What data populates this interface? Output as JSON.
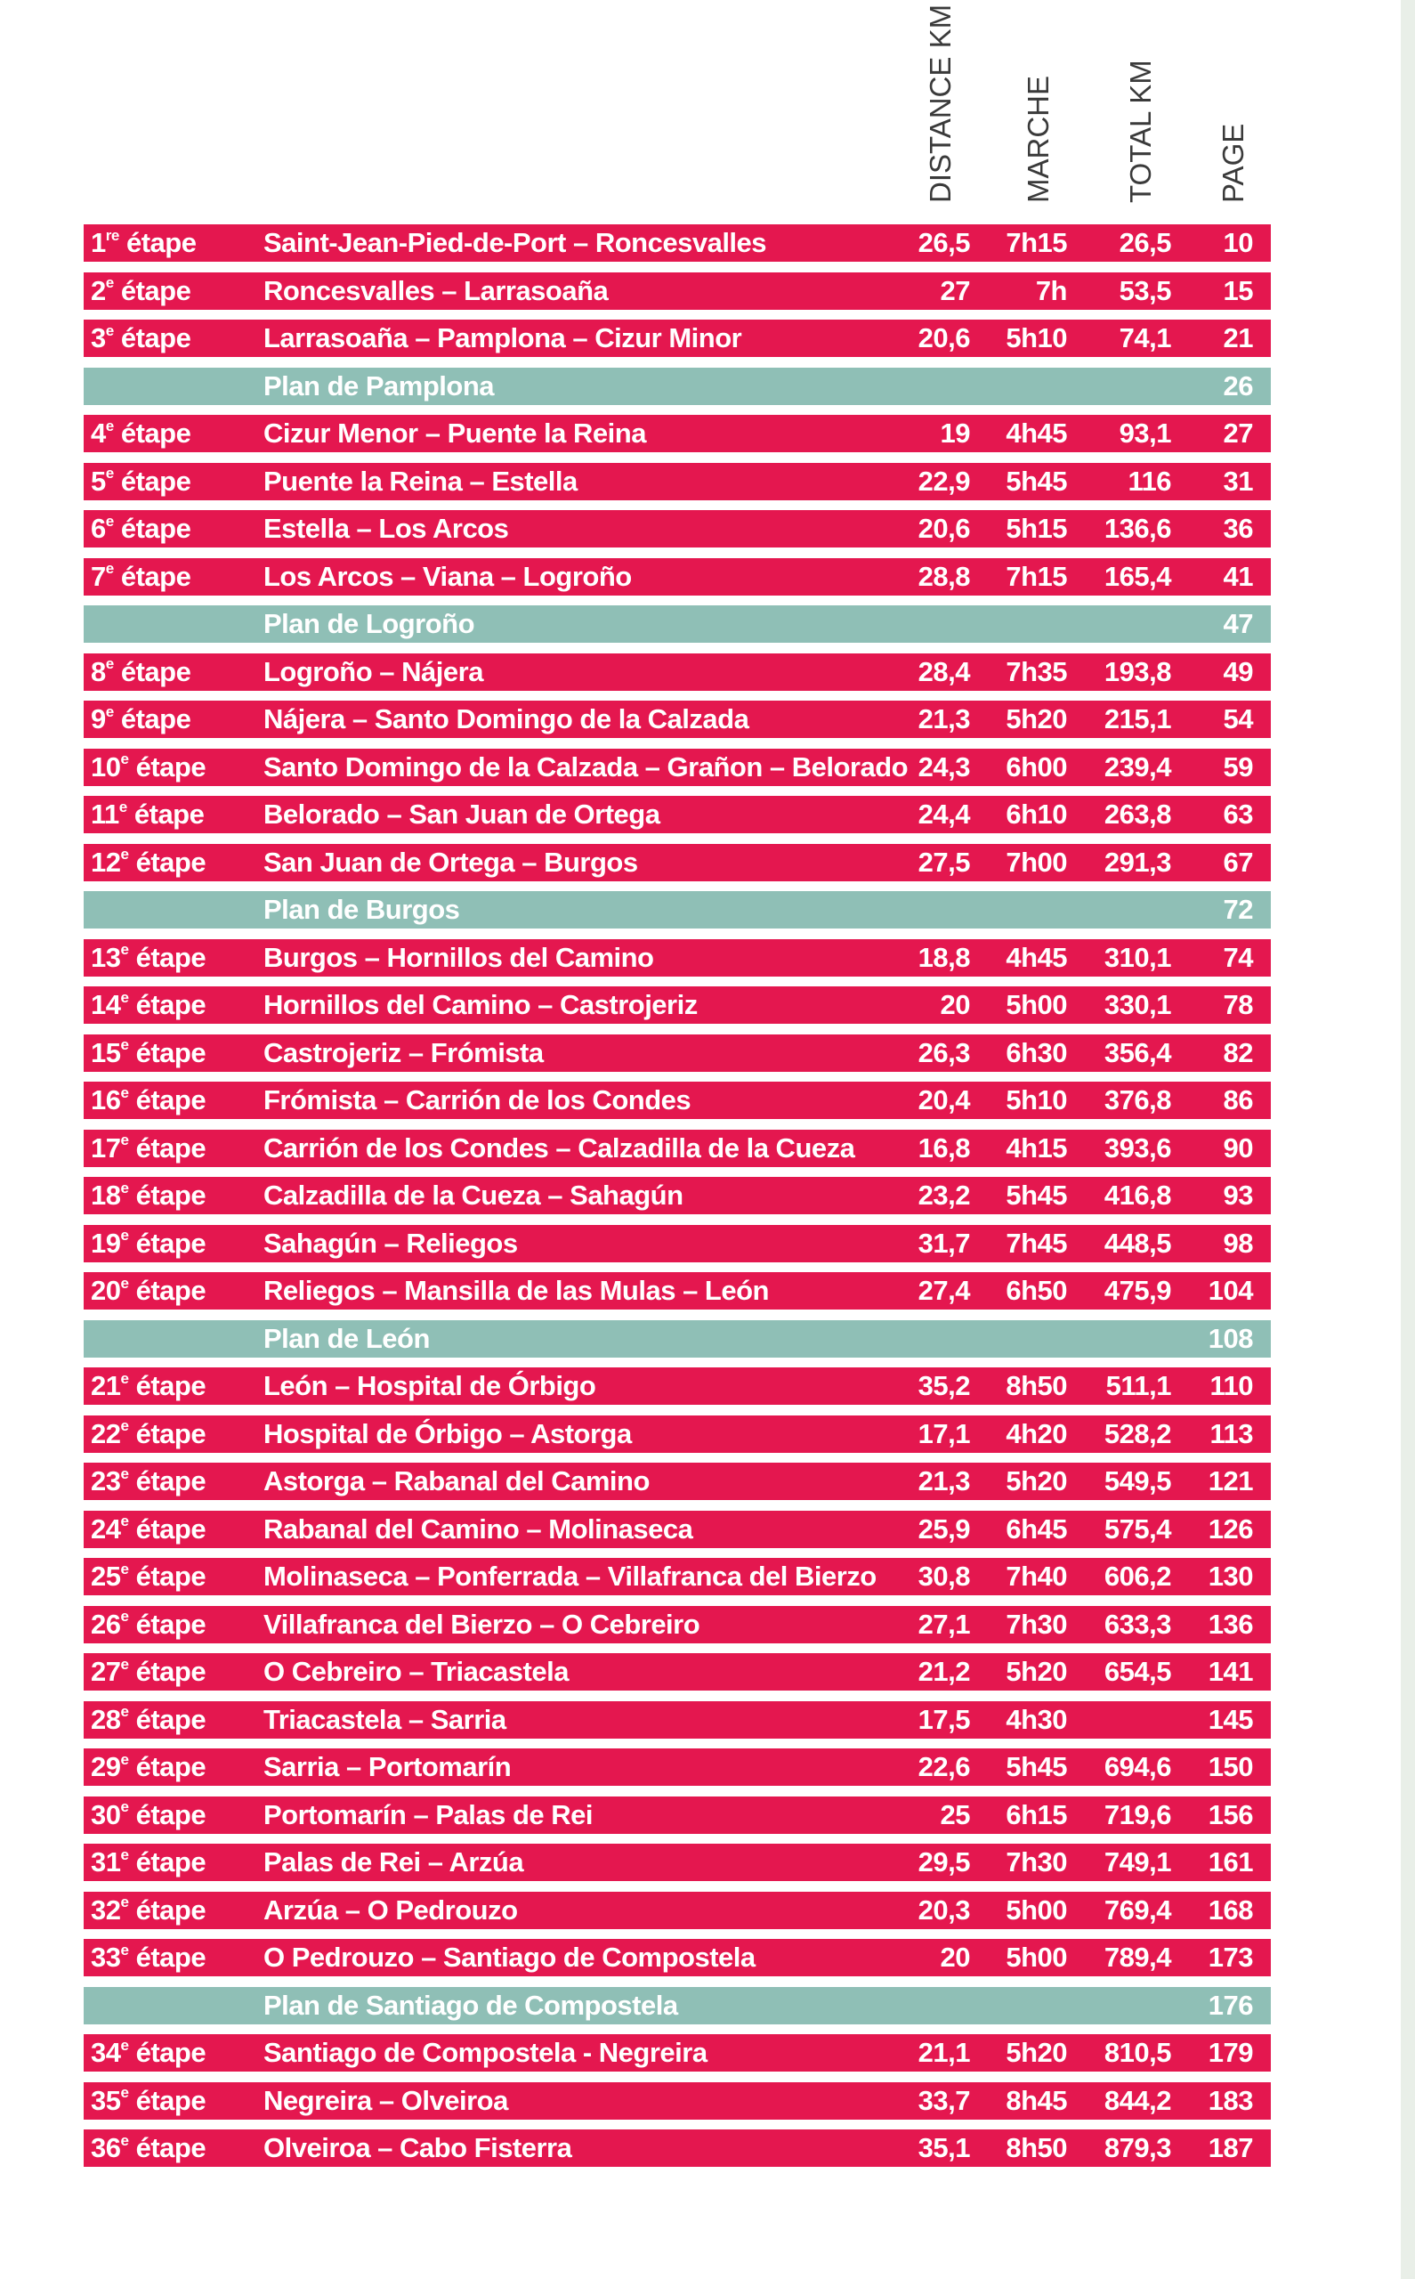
{
  "headers": {
    "distance": "DISTANCE KM",
    "marche": "MARCHE",
    "total": "TOTAL KM",
    "page": "PAGE"
  },
  "rows": [
    {
      "type": "etape",
      "n": "1",
      "sup": "re",
      "label": "étape",
      "route": "Saint-Jean-Pied-de-Port – Roncesvalles",
      "dist": "26,5",
      "time": "7h15",
      "total": "26,5",
      "page": "10"
    },
    {
      "type": "etape",
      "n": "2",
      "sup": "e",
      "label": "étape",
      "route": "Roncesvalles – Larrasoaña",
      "dist": "27",
      "time": "7h",
      "total": "53,5",
      "page": "15"
    },
    {
      "type": "etape",
      "n": "3",
      "sup": "e",
      "label": "étape",
      "route": "Larrasoaña – Pamplona – Cizur Minor",
      "dist": "20,6",
      "time": "5h10",
      "total": "74,1",
      "page": "21"
    },
    {
      "type": "plan",
      "route": "Plan de Pamplona",
      "page": "26"
    },
    {
      "type": "etape",
      "n": "4",
      "sup": "e",
      "label": "étape",
      "route": "Cizur Menor – Puente la Reina",
      "dist": "19",
      "time": "4h45",
      "total": "93,1",
      "page": "27"
    },
    {
      "type": "etape",
      "n": "5",
      "sup": "e",
      "label": "étape",
      "route": "Puente la Reina – Estella",
      "dist": "22,9",
      "time": "5h45",
      "total": "116",
      "page": "31"
    },
    {
      "type": "etape",
      "n": "6",
      "sup": "e",
      "label": "étape",
      "route": "Estella – Los Arcos",
      "dist": "20,6",
      "time": "5h15",
      "total": "136,6",
      "page": "36"
    },
    {
      "type": "etape",
      "n": "7",
      "sup": "e",
      "label": "étape",
      "route": "Los Arcos – Viana – Logroño",
      "dist": "28,8",
      "time": "7h15",
      "total": "165,4",
      "page": "41"
    },
    {
      "type": "plan",
      "route": "Plan de Logroño",
      "page": "47"
    },
    {
      "type": "etape",
      "n": "8",
      "sup": "e",
      "label": "étape",
      "route": "Logroño – Nájera",
      "dist": "28,4",
      "time": "7h35",
      "total": "193,8",
      "page": "49"
    },
    {
      "type": "etape",
      "n": "9",
      "sup": "e",
      "label": "étape",
      "route": "Nájera – Santo Domingo de la Calzada",
      "dist": "21,3",
      "time": "5h20",
      "total": "215,1",
      "page": "54"
    },
    {
      "type": "etape",
      "n": "10",
      "sup": "e",
      "label": "étape",
      "route": "Santo Domingo de la Calzada – Grañon – Belorado",
      "dist": "24,3",
      "time": "6h00",
      "total": "239,4",
      "page": "59"
    },
    {
      "type": "etape",
      "n": "11",
      "sup": "e",
      "label": "étape",
      "route": "Belorado – San Juan de Ortega",
      "dist": "24,4",
      "time": "6h10",
      "total": "263,8",
      "page": "63"
    },
    {
      "type": "etape",
      "n": "12",
      "sup": "e",
      "label": "étape",
      "route": "San Juan de Ortega – Burgos",
      "dist": "27,5",
      "time": "7h00",
      "total": "291,3",
      "page": "67"
    },
    {
      "type": "plan",
      "route": "Plan de Burgos",
      "page": "72"
    },
    {
      "type": "etape",
      "n": "13",
      "sup": "e",
      "label": "étape",
      "route": "Burgos – Hornillos del Camino",
      "dist": "18,8",
      "time": "4h45",
      "total": "310,1",
      "page": "74"
    },
    {
      "type": "etape",
      "n": "14",
      "sup": "e",
      "label": "étape",
      "route": "Hornillos del Camino – Castrojeriz",
      "dist": "20",
      "time": "5h00",
      "total": "330,1",
      "page": "78"
    },
    {
      "type": "etape",
      "n": "15",
      "sup": "e",
      "label": "étape",
      "route": "Castrojeriz – Frómista",
      "dist": "26,3",
      "time": "6h30",
      "total": "356,4",
      "page": "82"
    },
    {
      "type": "etape",
      "n": "16",
      "sup": "e",
      "label": "étape",
      "route": "Frómista – Carrión de los Condes",
      "dist": "20,4",
      "time": "5h10",
      "total": "376,8",
      "page": "86"
    },
    {
      "type": "etape",
      "n": "17",
      "sup": "e",
      "label": "étape",
      "route": "Carrión de los Condes – Calzadilla de la Cueza",
      "dist": "16,8",
      "time": "4h15",
      "total": "393,6",
      "page": "90"
    },
    {
      "type": "etape",
      "n": "18",
      "sup": "e",
      "label": "étape",
      "route": "Calzadilla de la Cueza – Sahagún",
      "dist": "23,2",
      "time": "5h45",
      "total": "416,8",
      "page": "93"
    },
    {
      "type": "etape",
      "n": "19",
      "sup": "e",
      "label": "étape",
      "route": "Sahagún – Reliegos",
      "dist": "31,7",
      "time": "7h45",
      "total": "448,5",
      "page": "98"
    },
    {
      "type": "etape",
      "n": "20",
      "sup": "e",
      "label": "étape",
      "route": "Reliegos – Mansilla de las Mulas – León",
      "dist": "27,4",
      "time": "6h50",
      "total": "475,9",
      "page": "104"
    },
    {
      "type": "plan",
      "route": "Plan de León",
      "page": "108"
    },
    {
      "type": "etape",
      "n": "21",
      "sup": "e",
      "label": "étape",
      "route": "León – Hospital de Órbigo",
      "dist": "35,2",
      "time": "8h50",
      "total": "511,1",
      "page": "110"
    },
    {
      "type": "etape",
      "n": "22",
      "sup": "e",
      "label": "étape",
      "route": "Hospital de Órbigo – Astorga",
      "dist": "17,1",
      "time": "4h20",
      "total": "528,2",
      "page": "113"
    },
    {
      "type": "etape",
      "n": "23",
      "sup": "e",
      "label": "étape",
      "route": "Astorga – Rabanal del Camino",
      "dist": "21,3",
      "time": "5h20",
      "total": "549,5",
      "page": "121"
    },
    {
      "type": "etape",
      "n": "24",
      "sup": "e",
      "label": "étape",
      "route": "Rabanal del Camino – Molinaseca",
      "dist": "25,9",
      "time": "6h45",
      "total": "575,4",
      "page": "126"
    },
    {
      "type": "etape",
      "n": "25",
      "sup": "e",
      "label": "étape",
      "route": "Molinaseca – Ponferrada – Villafranca del Bierzo",
      "dist": "30,8",
      "time": "7h40",
      "total": "606,2",
      "page": "130"
    },
    {
      "type": "etape",
      "n": "26",
      "sup": "e",
      "label": "étape",
      "route": "Villafranca del Bierzo – O Cebreiro",
      "dist": "27,1",
      "time": "7h30",
      "total": "633,3",
      "page": "136"
    },
    {
      "type": "etape",
      "n": "27",
      "sup": "e",
      "label": "étape",
      "route": "O Cebreiro – Triacastela",
      "dist": "21,2",
      "time": "5h20",
      "total": "654,5",
      "page": "141"
    },
    {
      "type": "etape",
      "n": "28",
      "sup": "e",
      "label": "étape",
      "route": "Triacastela – Sarria",
      "dist": "17,5",
      "time": "4h30",
      "total": "",
      "page": "145"
    },
    {
      "type": "etape",
      "n": "29",
      "sup": "e",
      "label": "étape",
      "route": "Sarria – Portomarín",
      "dist": "22,6",
      "time": "5h45",
      "total": "694,6",
      "page": "150"
    },
    {
      "type": "etape",
      "n": "30",
      "sup": "e",
      "label": "étape",
      "route": "Portomarín – Palas de Rei",
      "dist": "25",
      "time": "6h15",
      "total": "719,6",
      "page": "156"
    },
    {
      "type": "etape",
      "n": "31",
      "sup": "e",
      "label": "étape",
      "route": "Palas de Rei – Arzúa",
      "dist": "29,5",
      "time": "7h30",
      "total": "749,1",
      "page": "161"
    },
    {
      "type": "etape",
      "n": "32",
      "sup": "e",
      "label": "étape",
      "route": "Arzúa – O Pedrouzo",
      "dist": "20,3",
      "time": "5h00",
      "total": "769,4",
      "page": "168"
    },
    {
      "type": "etape",
      "n": "33",
      "sup": "e",
      "label": "étape",
      "route": "O Pedrouzo – Santiago de Compostela",
      "dist": "20",
      "time": "5h00",
      "total": "789,4",
      "page": "173"
    },
    {
      "type": "plan",
      "route": "Plan de Santiago de Compostela",
      "page": "176"
    },
    {
      "type": "etape",
      "n": "34",
      "sup": "e",
      "label": "étape",
      "route": "Santiago de Compostela - Negreira",
      "dist": "21,1",
      "time": "5h20",
      "total": "810,5",
      "page": "179"
    },
    {
      "type": "etape",
      "n": "35",
      "sup": "e",
      "label": "étape",
      "route": "Negreira – Olveiroa",
      "dist": "33,7",
      "time": "8h45",
      "total": "844,2",
      "page": "183"
    },
    {
      "type": "etape",
      "n": "36",
      "sup": "e",
      "label": "étape",
      "route": "Olveiroa – Cabo Fisterra",
      "dist": "35,1",
      "time": "8h50",
      "total": "879,3",
      "page": "187"
    }
  ],
  "colors": {
    "etape_row": "#e4174f",
    "plan_row": "#8fbfb6",
    "header_text": "#3a3a3a"
  }
}
